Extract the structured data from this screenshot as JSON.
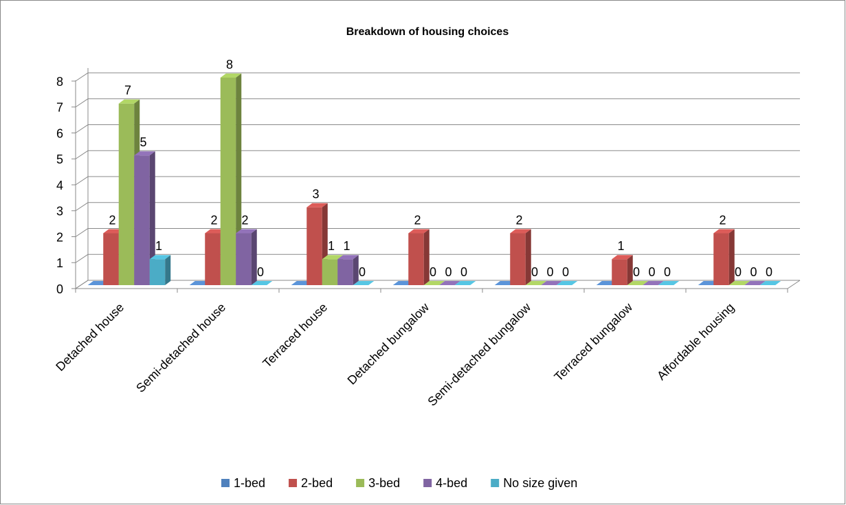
{
  "chart_data": {
    "type": "bar3d",
    "title": "Breakdown of housing choices",
    "categories": [
      "Detached house",
      "Semi-detached house",
      "Terraced house",
      "Detached bungalow",
      "Semi-detached bungalow",
      "Terraced bungalow",
      "Affordable housing"
    ],
    "series": [
      {
        "name": "1-bed",
        "color": "#4f81bd",
        "values": [
          0,
          0,
          0,
          0,
          0,
          0,
          0
        ],
        "data_labels": false
      },
      {
        "name": "2-bed",
        "color": "#c0504d",
        "values": [
          2,
          2,
          3,
          2,
          2,
          1,
          2
        ],
        "data_labels": true
      },
      {
        "name": "3-bed",
        "color": "#9bbb59",
        "values": [
          7,
          8,
          1,
          0,
          0,
          0,
          0
        ],
        "data_labels": true
      },
      {
        "name": "4-bed",
        "color": "#8064a2",
        "values": [
          5,
          2,
          1,
          0,
          0,
          0,
          0
        ],
        "data_labels": true
      },
      {
        "name": "No size given",
        "color": "#4bacc6",
        "values": [
          1,
          0,
          0,
          0,
          0,
          0,
          0
        ],
        "data_labels": true
      }
    ],
    "ylim": [
      0,
      8
    ],
    "yticks": [
      0,
      1,
      2,
      3,
      4,
      5,
      6,
      7,
      8
    ],
    "grid": true,
    "legend": "bottom"
  }
}
